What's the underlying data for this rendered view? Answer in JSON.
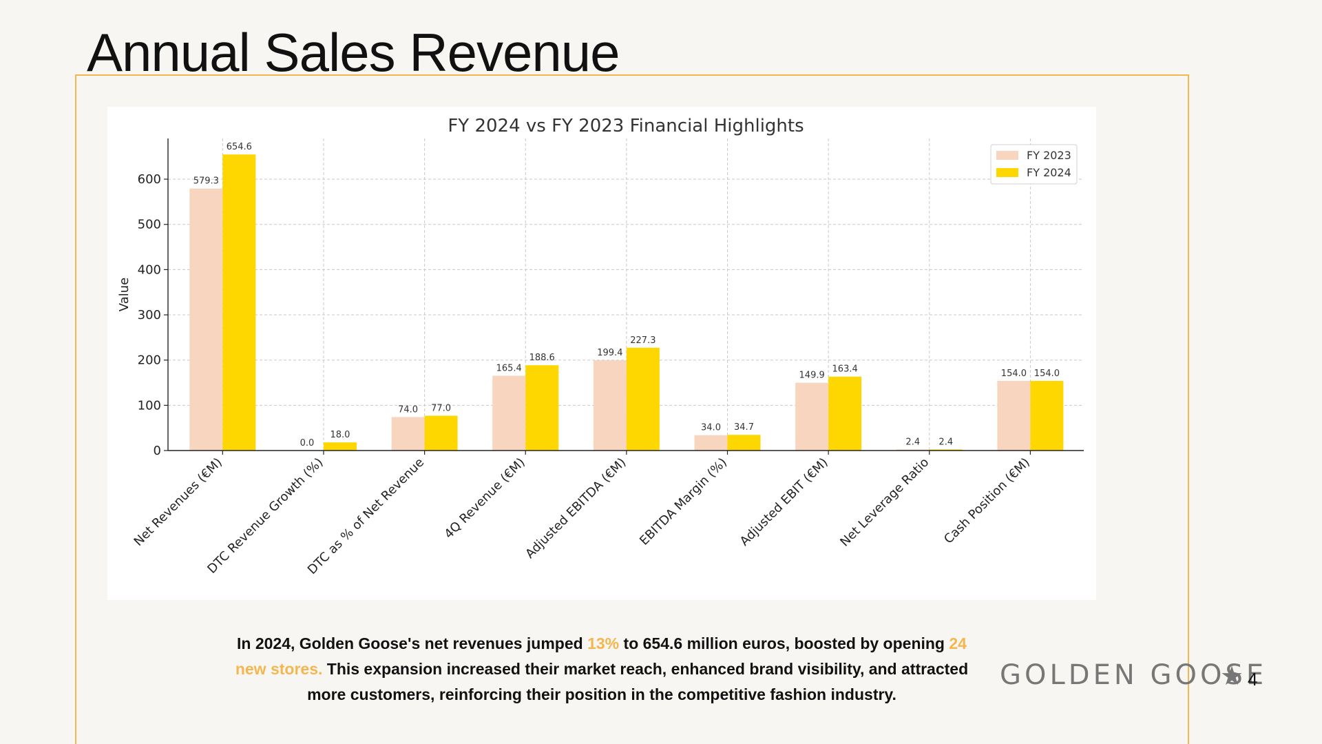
{
  "slide": {
    "title": "Annual Sales Revenue",
    "page_number": "4",
    "brand": "GOLDEN GOOSE",
    "brand_star": "★",
    "caption": {
      "part1": "In 2024, Golden Goose's net revenues jumped ",
      "accent1": "13%",
      "part2": " to 654.6 million euros, boosted by opening ",
      "accent2": "24 new stores.",
      "part3": " This expansion increased their market reach, enhanced brand visibility, and attracted more customers, reinforcing their position in the competitive fashion industry."
    }
  },
  "colors": {
    "background": "#f7f6f2",
    "frame": "#f4b74f",
    "accent_text": "#f4b74f",
    "fy2023": "#f8d5be",
    "fy2024": "#ffd700"
  },
  "chart_data": {
    "type": "bar",
    "title": "FY 2024 vs FY 2023 Financial Highlights",
    "xlabel": "",
    "ylabel": "Value",
    "ylim": [
      0,
      690
    ],
    "yticks": [
      0,
      100,
      200,
      300,
      400,
      500,
      600
    ],
    "grid": true,
    "legend_position": "top-right",
    "categories": [
      "Net Revenues (€M)",
      "DTC Revenue Growth (%)",
      "DTC as % of Net Revenue",
      "4Q Revenue (€M)",
      "Adjusted EBITDA (€M)",
      "EBITDA Margin (%)",
      "Adjusted EBIT (€M)",
      "Net Leverage Ratio",
      "Cash Position (€M)"
    ],
    "series": [
      {
        "name": "FY 2023",
        "color": "#f8d5be",
        "values": [
          579.3,
          0.0,
          74.0,
          165.4,
          199.4,
          34.0,
          149.9,
          2.4,
          154.0
        ]
      },
      {
        "name": "FY 2024",
        "color": "#ffd700",
        "values": [
          654.6,
          18.0,
          77.0,
          188.6,
          227.3,
          34.7,
          163.4,
          2.4,
          154.0
        ]
      }
    ]
  }
}
